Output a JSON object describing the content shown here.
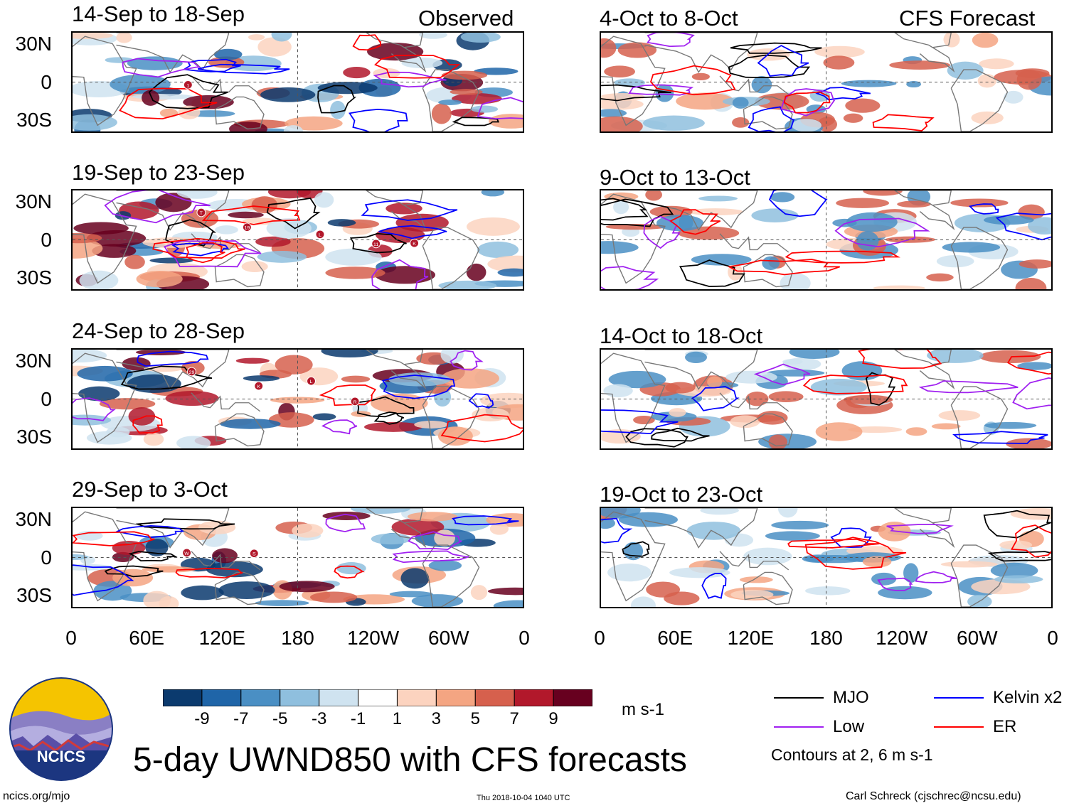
{
  "chart_data": {
    "type": "heatmap",
    "title": "5-day UWND850 with CFS forecasts",
    "variable": "850-hPa zonal wind anomaly",
    "units": "m s-1",
    "columns": [
      {
        "header": "Observed",
        "panels": [
          {
            "period": "14-Sep to 18-Sep",
            "storms": [
              "1"
            ]
          },
          {
            "period": "19-Sep to 23-Sep",
            "storms": [
              "T",
              "19",
              "L",
              "11",
              "K"
            ]
          },
          {
            "period": "24-Sep to 28-Sep",
            "storms": [
              "29",
              "K",
              "L",
              "R"
            ]
          },
          {
            "period": "29-Sep to 3-Oct",
            "storms": [
              "W",
              "S"
            ]
          }
        ]
      },
      {
        "header": "CFS Forecast",
        "panels": [
          {
            "period": "4-Oct to 8-Oct",
            "storms": []
          },
          {
            "period": "9-Oct to 13-Oct",
            "storms": []
          },
          {
            "period": "14-Oct to 18-Oct",
            "storms": []
          },
          {
            "period": "19-Oct to 23-Oct",
            "storms": []
          }
        ]
      }
    ],
    "y_ticks": [
      "30N",
      "0",
      "30S"
    ],
    "y_values": [
      30,
      0,
      -30
    ],
    "ylim": [
      -40,
      40
    ],
    "x_ticks": [
      "0",
      "60E",
      "120E",
      "180",
      "120W",
      "60W",
      "0"
    ],
    "x_values": [
      0,
      60,
      120,
      180,
      240,
      300,
      360
    ],
    "xlim": [
      0,
      360
    ],
    "colorbar": {
      "levels": [
        "-9",
        "-7",
        "-5",
        "-3",
        "-1",
        "1",
        "3",
        "5",
        "7",
        "9"
      ],
      "colors": [
        "#0b3a6e",
        "#1f65a8",
        "#4a8fc4",
        "#8fbfde",
        "#cfe3f0",
        "#ffffff",
        "#fcd3bf",
        "#f4a582",
        "#d6604d",
        "#b2182b",
        "#67001f"
      ]
    },
    "contour_legend": [
      {
        "label": "MJO",
        "color": "#000000"
      },
      {
        "label": "Kelvin x2",
        "color": "#0000ff"
      },
      {
        "label": "Low",
        "color": "#a020f0"
      },
      {
        "label": "ER",
        "color": "#ff0000"
      }
    ],
    "contour_note": "Contours at 2, 6 m s-1"
  },
  "footer": {
    "logo_text": "NCICS",
    "url": "ncics.org/mjo",
    "timestamp": "Thu 2018-10-04 1040 UTC",
    "author": "Carl Schreck (cjschrec@ncsu.edu)"
  }
}
